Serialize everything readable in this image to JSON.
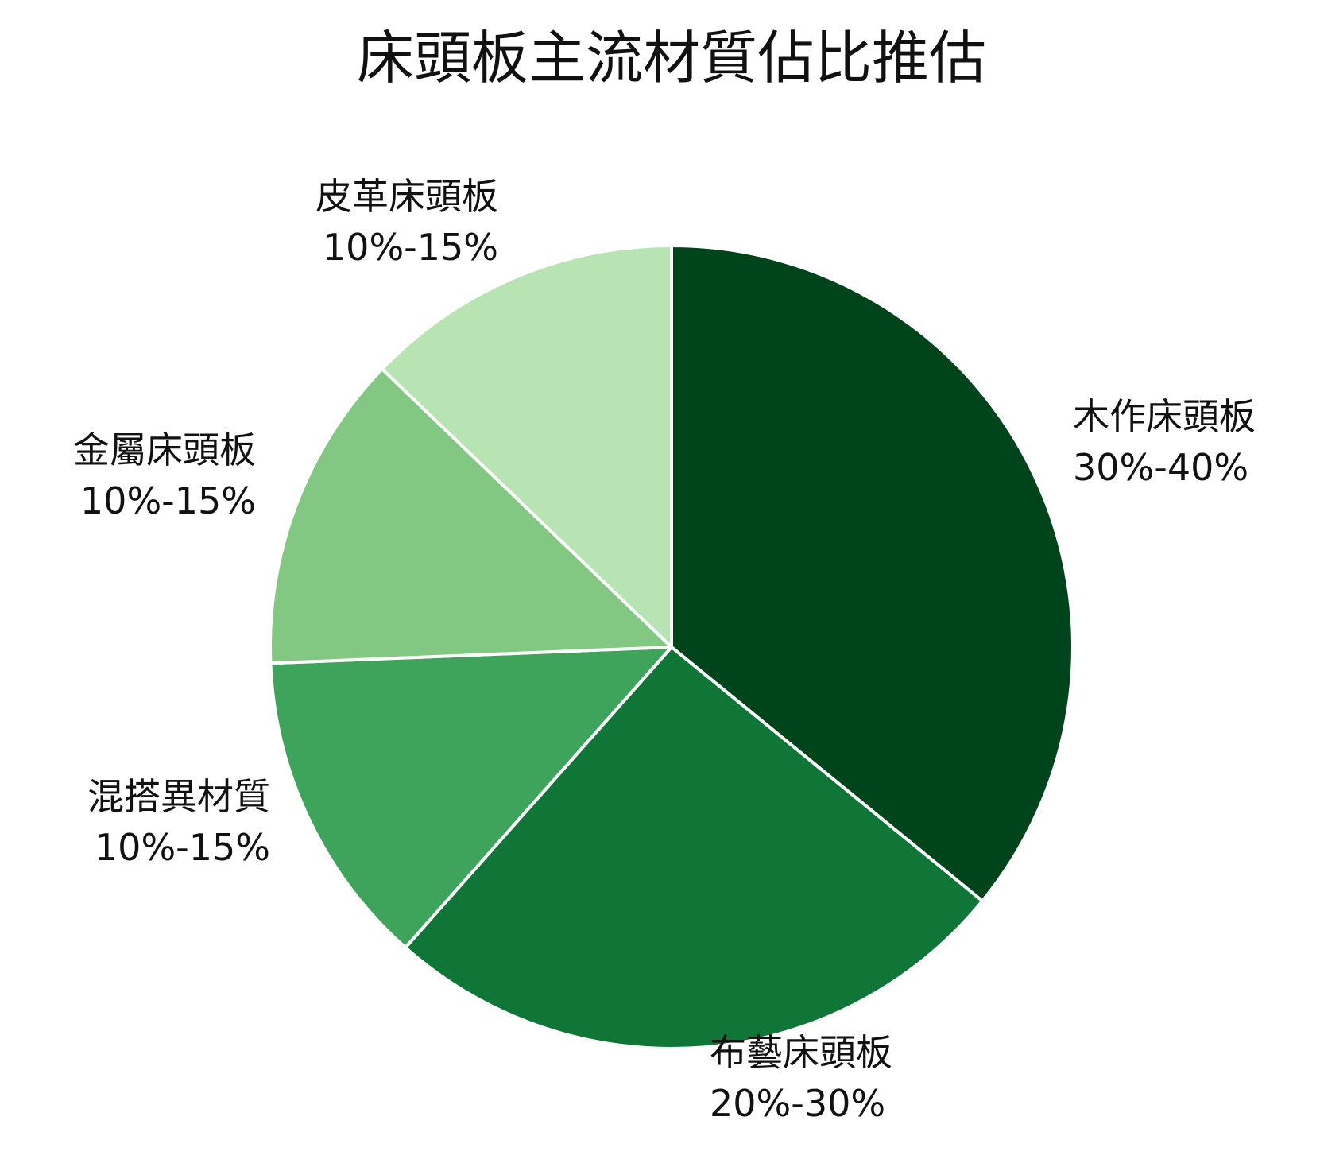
{
  "chart_data": {
    "type": "pie",
    "title": "床頭板主流材質佔比推估",
    "slices": [
      {
        "name": "木作床頭板",
        "value_label": "30%-40%",
        "value": 35,
        "color": "#00441b"
      },
      {
        "name": "布藝床頭板",
        "value_label": "20%-30%",
        "value": 25,
        "color": "#0f7637"
      },
      {
        "name": "混搭異材質",
        "value_label": "10%-15%",
        "value": 12.5,
        "color": "#3fa45b"
      },
      {
        "name": "金屬床頭板",
        "value_label": "10%-15%",
        "value": 12.5,
        "color": "#82c882"
      },
      {
        "name": "皮革床頭板",
        "value_label": "10%-15%",
        "value": 12.5,
        "color": "#b8e3b2"
      }
    ],
    "start_angle": "12 o'clock",
    "direction": "clockwise",
    "legend": "none"
  }
}
